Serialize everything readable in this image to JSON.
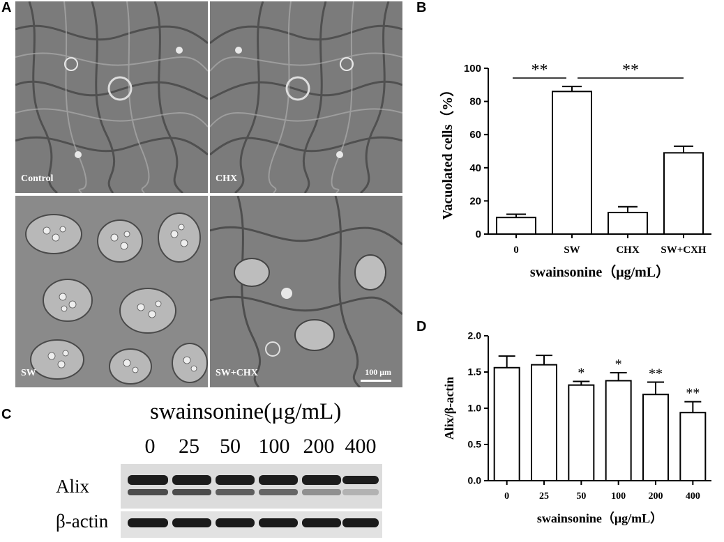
{
  "panel_letters": {
    "a": "A",
    "b": "B",
    "c": "C",
    "d": "D"
  },
  "panel_a": {
    "labels": [
      "Control",
      "CHX",
      "SW",
      "SW+CHX"
    ],
    "scale_bar": "100 μm"
  },
  "panel_c": {
    "title": "swainsonine(μg/mL)",
    "lanes": [
      "0",
      "25",
      "50",
      "100",
      "200",
      "400"
    ],
    "rows": [
      "Alix",
      "β-actin"
    ]
  },
  "chart_data": [
    {
      "panel": "B",
      "type": "bar",
      "categories": [
        "0",
        "SW",
        "CHX",
        "SW+CXH"
      ],
      "values": [
        10,
        86,
        13,
        49
      ],
      "errors": [
        2,
        3,
        3.5,
        4
      ],
      "ylim": [
        0,
        100
      ],
      "yticks": [
        "0",
        "20",
        "40",
        "60",
        "80",
        "100"
      ],
      "ylabel": "Vacuolated cells（%）",
      "xlabel": "swainsonine（μg/mL）",
      "significance": [
        {
          "from": 0,
          "to": 1,
          "label": "**"
        },
        {
          "from": 1,
          "to": 3,
          "label": "**"
        }
      ]
    },
    {
      "panel": "D",
      "type": "bar",
      "categories": [
        "0",
        "25",
        "50",
        "100",
        "200",
        "400"
      ],
      "values": [
        1.56,
        1.6,
        1.32,
        1.38,
        1.19,
        0.94
      ],
      "errors": [
        0.16,
        0.13,
        0.05,
        0.11,
        0.17,
        0.15
      ],
      "stars": [
        "",
        "",
        "*",
        "*",
        "**",
        "**"
      ],
      "ylim": [
        0,
        2.0
      ],
      "yticks": [
        "0.0",
        "0.5",
        "1.0",
        "1.5",
        "2.0"
      ],
      "ylabel": "Alix/β-actin",
      "xlabel": "swainsonine（μg/mL）"
    }
  ]
}
